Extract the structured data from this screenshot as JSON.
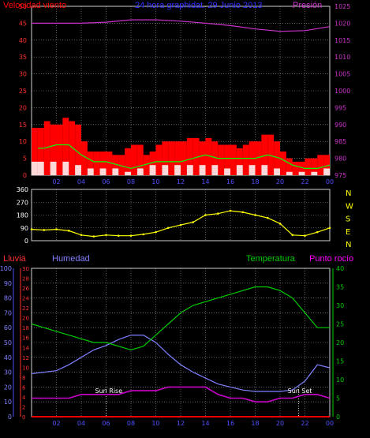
{
  "header": {
    "wind_label": "Velocidad viento",
    "title": "24 hora graphidat. 29 Junio 2013",
    "pressure_label": "Presión"
  },
  "lower_header": {
    "rain_label": "Lluvia",
    "humidity_label": "Humedad",
    "temperature_label": "Temperatura",
    "dewpoint_label": "Punto rocío"
  },
  "colors": {
    "wind_speed": "#ff0000",
    "wind_gust": "#00ff00",
    "wind_avg": "#ffffff",
    "pressure": "#cc33cc",
    "direction": "#ffff00",
    "humidity": "#8080ff",
    "temperature": "#00cc00",
    "dewpoint": "#cc00cc",
    "rain": "#ff0000",
    "grid": "#9a9a9a",
    "text_blue": "#3030ff"
  },
  "chart_data": [
    {
      "type": "line",
      "title": "24 hora graphidat. 29 Junio 2013",
      "x_tick_labels": [
        "02",
        "04",
        "06",
        "08",
        "10",
        "12",
        "14",
        "16",
        "18",
        "20",
        "22",
        "00"
      ],
      "left_axis": {
        "label": "Velocidad viento",
        "range": [
          0,
          50
        ],
        "ticks": [
          0,
          5,
          10,
          15,
          20,
          25,
          30,
          35,
          40,
          45,
          50
        ]
      },
      "right_axis": {
        "label": "Presión",
        "range": [
          975,
          1025
        ],
        "ticks": [
          975,
          980,
          985,
          990,
          995,
          1000,
          1005,
          1010,
          1015,
          1020,
          1025
        ]
      },
      "series": [
        {
          "name": "Velocidad viento",
          "axis": "left",
          "x": [
            0.5,
            1,
            1.5,
            2,
            2.5,
            3,
            3.5,
            4,
            4.5,
            5,
            5.5,
            6,
            6.5,
            7,
            7.5,
            8,
            8.5,
            9,
            9.5,
            10,
            10.5,
            11,
            11.5,
            12,
            12.5,
            13,
            13.5,
            14,
            14.5,
            15,
            15.5,
            16,
            16.5,
            17,
            17.5,
            18,
            18.5,
            19,
            19.5,
            20,
            20.5,
            21,
            21.5,
            22,
            22.5,
            23,
            23.5,
            24
          ],
          "values": [
            14,
            14,
            16,
            15,
            15,
            17,
            16,
            15,
            10,
            7,
            7,
            7,
            7,
            6,
            6,
            8,
            9,
            9,
            6,
            7,
            9,
            10,
            10,
            10,
            10,
            11,
            11,
            10,
            11,
            10,
            9,
            9,
            9,
            8,
            9,
            10,
            10,
            12,
            12,
            10,
            7,
            5,
            4,
            4,
            5,
            5,
            6,
            6
          ]
        },
        {
          "name": "Racha",
          "axis": "left",
          "x": [
            0.5,
            1,
            2,
            3,
            4,
            5,
            6,
            7,
            8,
            9,
            10,
            11,
            12,
            13,
            14,
            15,
            16,
            17,
            18,
            19,
            20,
            21,
            22,
            23,
            24
          ],
          "values": [
            8,
            8,
            9,
            9,
            6,
            4,
            4,
            3,
            2,
            3,
            4,
            4,
            4,
            5,
            6,
            5,
            5,
            5,
            5,
            6,
            5,
            3,
            2,
            2,
            3
          ]
        },
        {
          "name": "Media",
          "axis": "left",
          "x": [
            0.5,
            1,
            2,
            3,
            4,
            5,
            6,
            7,
            8,
            9,
            10,
            11,
            12,
            13,
            14,
            15,
            16,
            17,
            18,
            19,
            20,
            21,
            22,
            23,
            24
          ],
          "values": [
            4,
            4,
            4,
            4,
            3,
            2,
            2,
            2,
            1,
            2,
            3,
            3,
            3,
            3,
            3,
            3,
            2,
            3,
            3,
            3,
            2,
            1,
            1,
            1,
            2
          ]
        },
        {
          "name": "Presión",
          "axis": "right",
          "x": [
            0,
            2,
            4,
            6,
            8,
            10,
            12,
            14,
            16,
            18,
            20,
            22,
            24
          ],
          "values": [
            1020.0,
            1020.0,
            1020.0,
            1020.3,
            1021.0,
            1021.0,
            1020.6,
            1020.0,
            1019.3,
            1018.3,
            1017.6,
            1017.8,
            1019.0
          ]
        }
      ]
    },
    {
      "type": "scatter",
      "x_tick_labels": [],
      "left_axis": {
        "range": [
          0,
          360
        ],
        "ticks": [
          0,
          90,
          180,
          270,
          360
        ]
      },
      "right_axis_labels": [
        "N",
        "W",
        "S",
        "E",
        "N"
      ],
      "series": [
        {
          "name": "Dirección",
          "x": [
            0,
            1,
            2,
            3,
            4,
            5,
            6,
            7,
            8,
            9,
            10,
            11,
            12,
            13,
            14,
            15,
            16,
            17,
            18,
            19,
            20,
            21,
            22,
            23,
            24
          ],
          "values": [
            80,
            75,
            80,
            70,
            40,
            30,
            40,
            35,
            35,
            45,
            60,
            90,
            110,
            130,
            180,
            190,
            210,
            200,
            180,
            160,
            120,
            40,
            35,
            60,
            90
          ]
        }
      ]
    },
    {
      "type": "line",
      "x_tick_labels": [
        "02",
        "04",
        "06",
        "08",
        "10",
        "12",
        "14",
        "16",
        "18",
        "20",
        "22",
        "00"
      ],
      "left_axes": [
        {
          "label": "Humedad",
          "range": [
            0,
            100
          ],
          "ticks": [
            0,
            10,
            20,
            30,
            40,
            50,
            60,
            70,
            80,
            90,
            100
          ]
        },
        {
          "label": "Lluvia",
          "range": [
            0,
            30
          ],
          "ticks": [
            0,
            2,
            4,
            6,
            8,
            10,
            12,
            14,
            16,
            18,
            20,
            22,
            24,
            26,
            28,
            30
          ]
        }
      ],
      "right_axis": {
        "label": "Temperatura",
        "range": [
          0,
          40
        ],
        "ticks": [
          0,
          5,
          10,
          15,
          20,
          25,
          30,
          35,
          40
        ]
      },
      "annotations": [
        {
          "text": "Sun Rise",
          "x": 6.0
        },
        {
          "text": "Sun Set",
          "x": 21.5
        }
      ],
      "series": [
        {
          "name": "Humedad",
          "axis": "humidity",
          "x": [
            0,
            1,
            2,
            3,
            4,
            5,
            6,
            7,
            8,
            9,
            10,
            11,
            12,
            13,
            14,
            15,
            16,
            17,
            18,
            19,
            20,
            21,
            22,
            23,
            24
          ],
          "values": [
            29,
            30,
            31,
            35,
            40,
            45,
            48,
            52,
            55,
            55,
            50,
            42,
            35,
            30,
            26,
            22,
            20,
            18,
            17,
            17,
            17,
            18,
            24,
            35,
            33
          ]
        },
        {
          "name": "Temperatura",
          "axis": "right",
          "x": [
            0,
            1,
            2,
            3,
            4,
            5,
            6,
            7,
            8,
            9,
            10,
            11,
            12,
            13,
            14,
            15,
            16,
            17,
            18,
            19,
            20,
            21,
            22,
            23,
            24
          ],
          "values": [
            25,
            24,
            23,
            22,
            21,
            20,
            20,
            19,
            18,
            19,
            22,
            25,
            28,
            30,
            31,
            32,
            33,
            34,
            35,
            35,
            34,
            32,
            28,
            24,
            24
          ]
        },
        {
          "name": "Punto rocío",
          "axis": "right",
          "x": [
            0,
            1,
            2,
            3,
            4,
            5,
            6,
            7,
            8,
            9,
            10,
            11,
            12,
            13,
            14,
            15,
            16,
            17,
            18,
            19,
            20,
            21,
            22,
            23,
            24
          ],
          "values": [
            5,
            5,
            5,
            5,
            6,
            6,
            6,
            6,
            7,
            7,
            7,
            8,
            8,
            8,
            8,
            6,
            5,
            5,
            4,
            4,
            5,
            5,
            6,
            6,
            5
          ]
        },
        {
          "name": "Lluvia",
          "axis": "rain",
          "x": [
            0,
            24
          ],
          "values": [
            0,
            0
          ]
        }
      ]
    }
  ]
}
